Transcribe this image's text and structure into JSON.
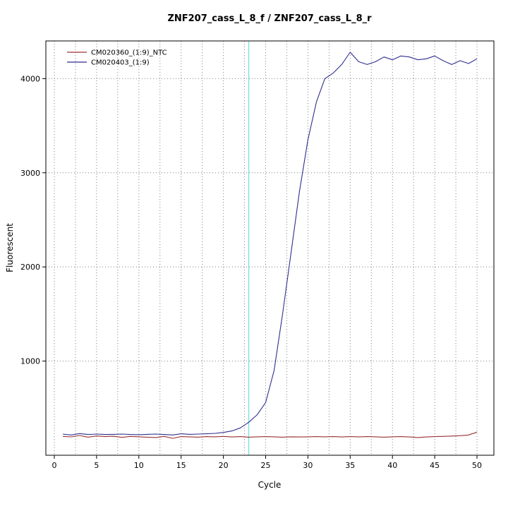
{
  "chart_data": {
    "type": "line",
    "title": "ZNF207_cass_L_8_f / ZNF207_cass_L_8_r",
    "xlabel": "Cycle",
    "ylabel": "Fluorescent",
    "xlim": [
      -1,
      52
    ],
    "ylim": [
      0,
      4400
    ],
    "x_ticks": [
      0,
      5,
      10,
      15,
      20,
      25,
      30,
      35,
      40,
      45,
      50
    ],
    "y_ticks": [
      1000,
      2000,
      3000,
      4000
    ],
    "grid": true,
    "grid_x_step": 2.5,
    "grid_color": "#808080",
    "threshold_line_x": 23,
    "threshold_color": "#7fdfe8",
    "legend_position": "top-left",
    "x": [
      1,
      2,
      3,
      4,
      5,
      6,
      7,
      8,
      9,
      10,
      11,
      12,
      13,
      14,
      15,
      16,
      17,
      18,
      19,
      20,
      21,
      22,
      23,
      24,
      25,
      26,
      27,
      28,
      29,
      30,
      31,
      32,
      33,
      34,
      35,
      36,
      37,
      38,
      39,
      40,
      41,
      42,
      43,
      44,
      45,
      46,
      47,
      48,
      49,
      50
    ],
    "series": [
      {
        "name": "CM020360_(1:9)_NTC",
        "color": "#993333",
        "values": [
          200,
          195,
          210,
          192,
          205,
          198,
          202,
          190,
          200,
          196,
          192,
          188,
          200,
          180,
          198,
          196,
          192,
          198,
          196,
          200,
          194,
          198,
          192,
          196,
          198,
          196,
          192,
          196,
          194,
          196,
          198,
          196,
          198,
          194,
          198,
          196,
          198,
          196,
          192,
          196,
          198,
          194,
          188,
          194,
          198,
          200,
          204,
          208,
          215,
          245
        ]
      },
      {
        "name": "CM020403_(1:9)",
        "color": "#2f2f8f",
        "values": [
          225,
          215,
          230,
          220,
          225,
          220,
          222,
          225,
          220,
          218,
          222,
          225,
          220,
          215,
          228,
          222,
          225,
          228,
          232,
          242,
          258,
          290,
          350,
          430,
          560,
          900,
          1500,
          2150,
          2800,
          3350,
          3750,
          4000,
          4060,
          4150,
          4280,
          4180,
          4150,
          4180,
          4230,
          4200,
          4240,
          4230,
          4200,
          4210,
          4240,
          4190,
          4150,
          4190,
          4160,
          4210
        ]
      }
    ]
  }
}
